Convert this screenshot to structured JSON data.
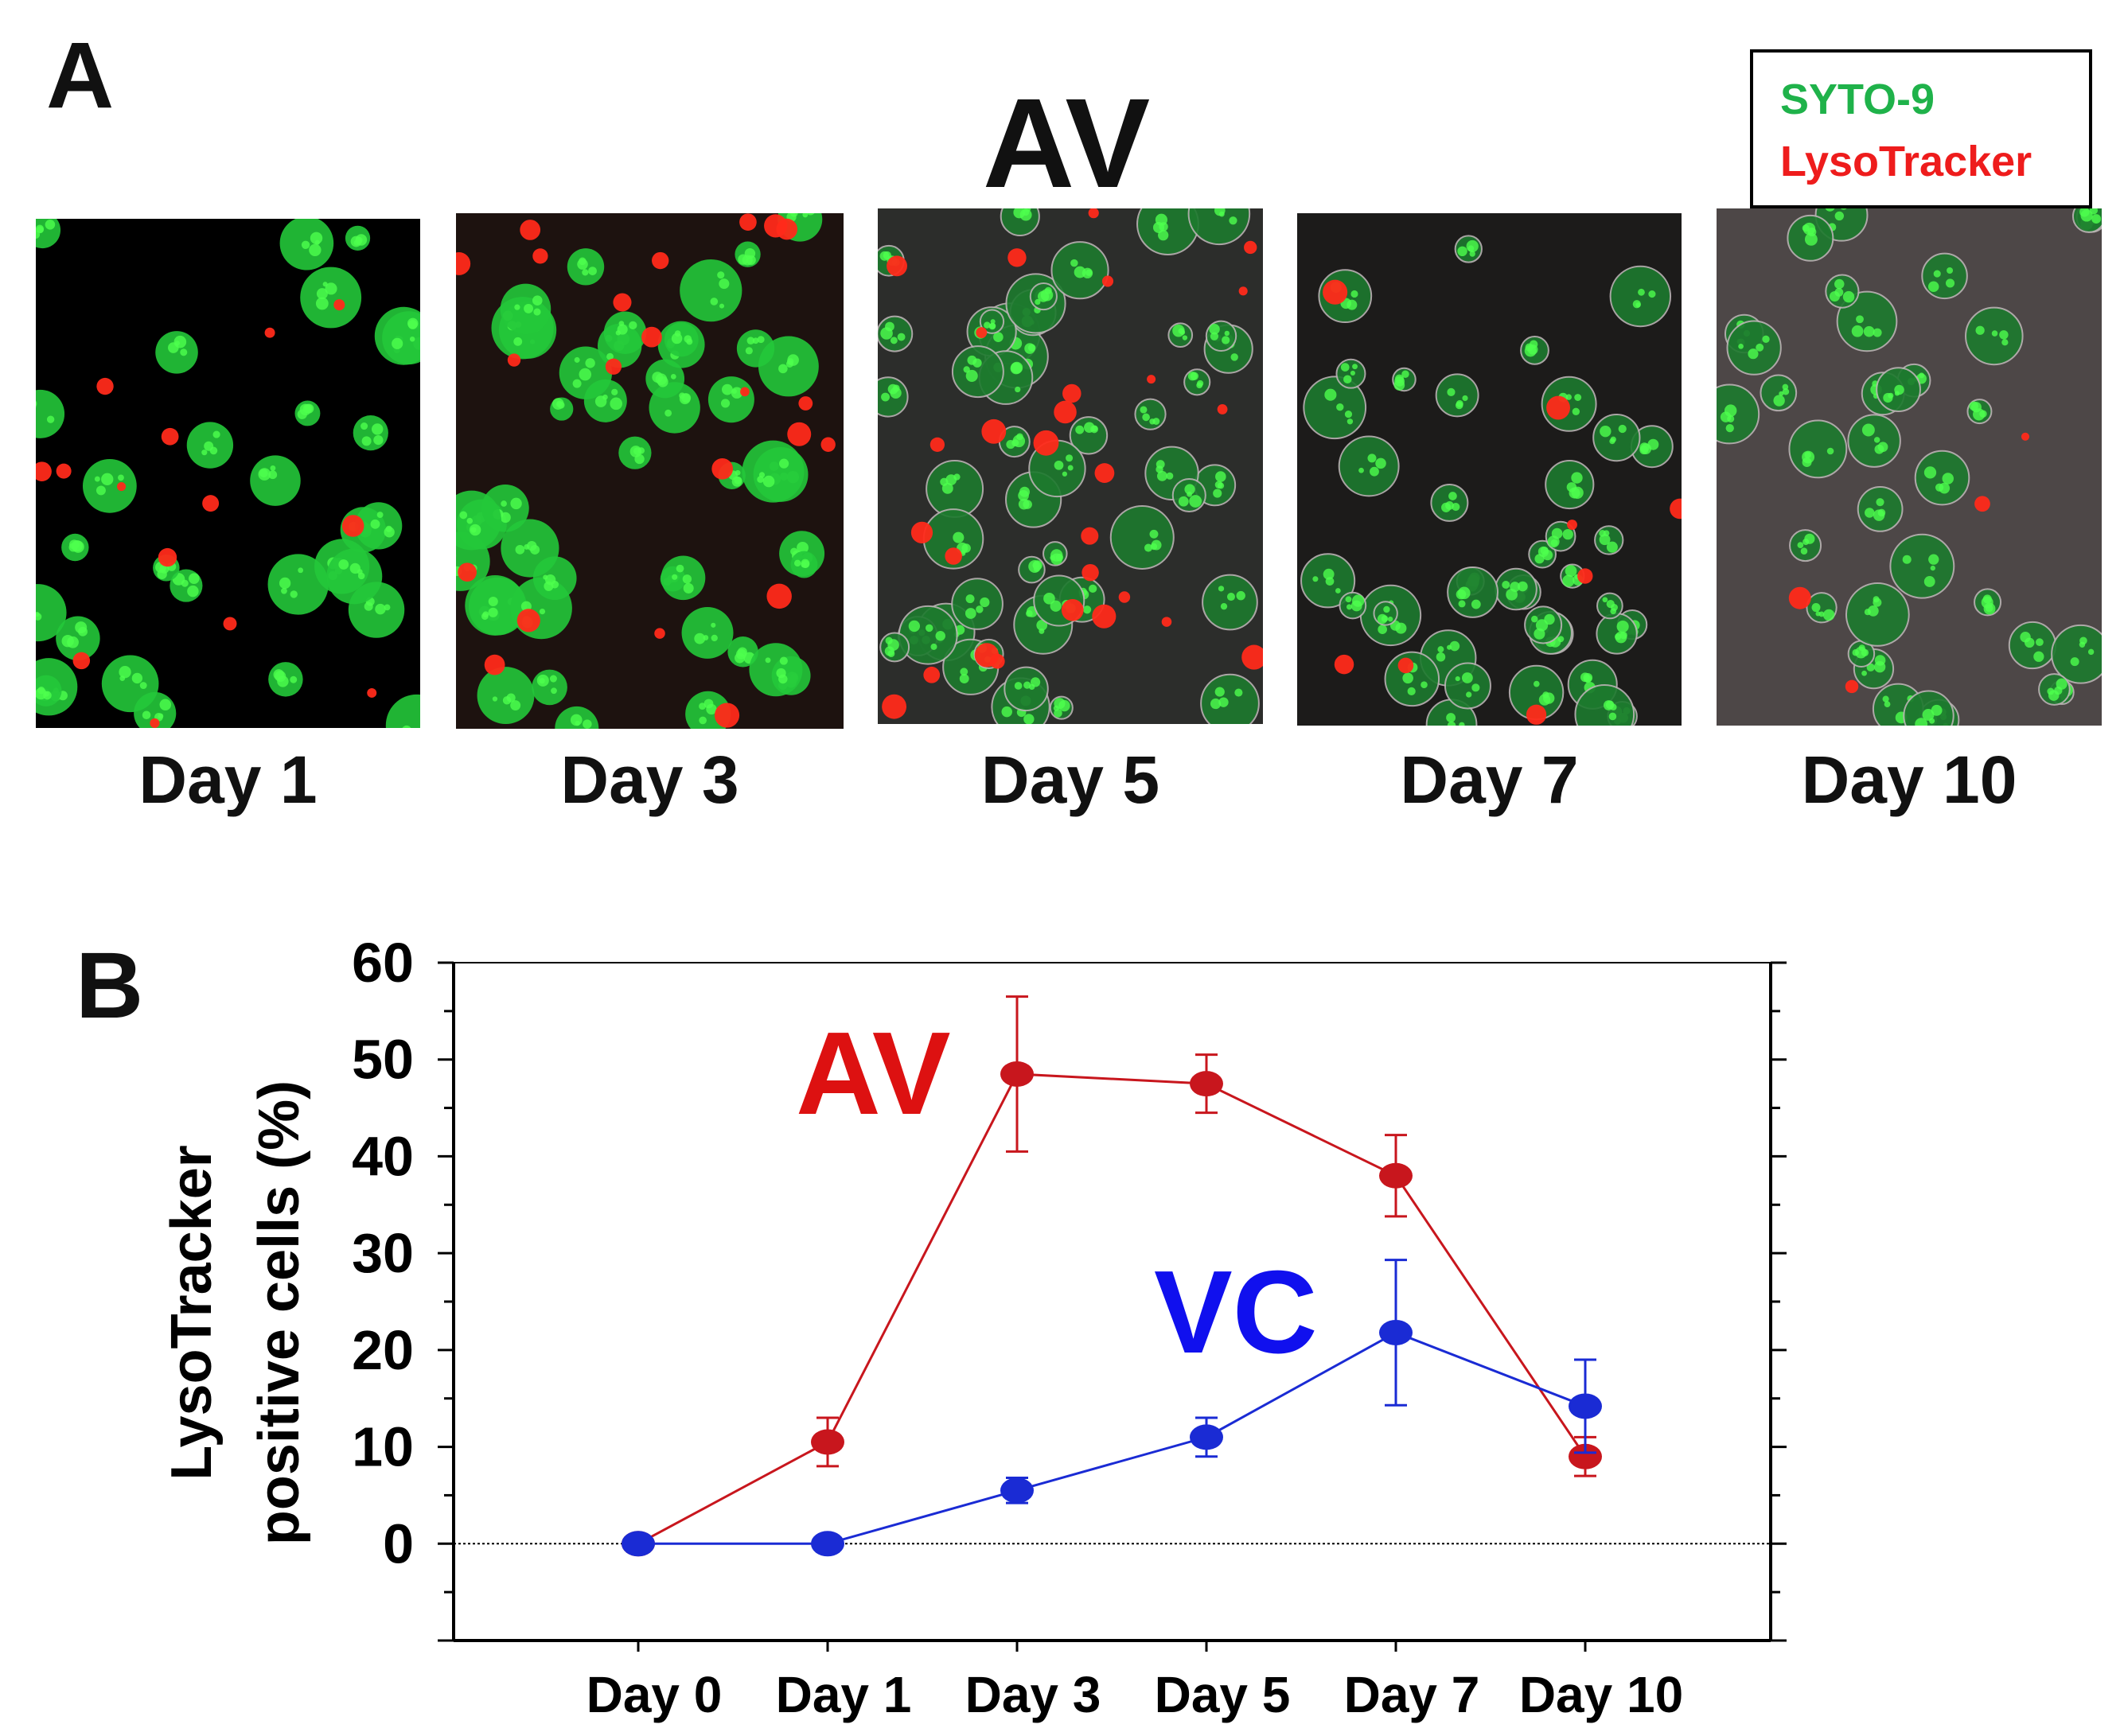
{
  "panel_a": {
    "letter": "A",
    "title": "AV",
    "legend": [
      {
        "label": "SYTO-9",
        "color": "#1fb24a"
      },
      {
        "label": "LysoTracker",
        "color": "#ee1c1c"
      }
    ],
    "images": [
      {
        "label": "Day 1",
        "background": "#000000",
        "cells": 30,
        "red_spots": 14,
        "seed": 11
      },
      {
        "label": "Day 3",
        "background": "#1d120f",
        "cells": 44,
        "red_spots": 22,
        "seed": 23
      },
      {
        "label": "Day 5",
        "background": "#2c2d2b",
        "cells": 48,
        "red_spots": 28,
        "seed": 37
      },
      {
        "label": "Day 7",
        "background": "#1c1b1a",
        "cells": 40,
        "red_spots": 8,
        "seed": 41
      },
      {
        "label": "Day 10",
        "background": "#4d4747",
        "cells": 34,
        "red_spots": 4,
        "seed": 53
      }
    ]
  },
  "panel_b": {
    "letter": "B"
  },
  "chart_data": {
    "type": "line",
    "categories": [
      "Day 0",
      "Day 1",
      "Day 3",
      "Day 5",
      "Day 7",
      "Day 10"
    ],
    "ylabel_line1": "LysoTracker",
    "ylabel_line2": "positive cells (%)",
    "ylim": [
      -10,
      60
    ],
    "yticks": [
      0,
      10,
      20,
      30,
      40,
      50,
      60
    ],
    "grid": false,
    "reference_line": 0,
    "series": [
      {
        "name": "AV",
        "color": "#c8161d",
        "label_color": "#dd1111",
        "values": [
          0,
          10.5,
          48.5,
          47.5,
          38,
          9
        ],
        "errors": [
          0,
          2.5,
          8,
          3,
          4.2,
          2
        ]
      },
      {
        "name": "VC",
        "color": "#1a2bd4",
        "label_color": "#1010ee",
        "values": [
          0,
          0,
          5.5,
          11,
          21.8,
          14.2
        ],
        "errors": [
          0,
          0,
          1.3,
          2,
          7.5,
          4.8
        ]
      }
    ]
  }
}
